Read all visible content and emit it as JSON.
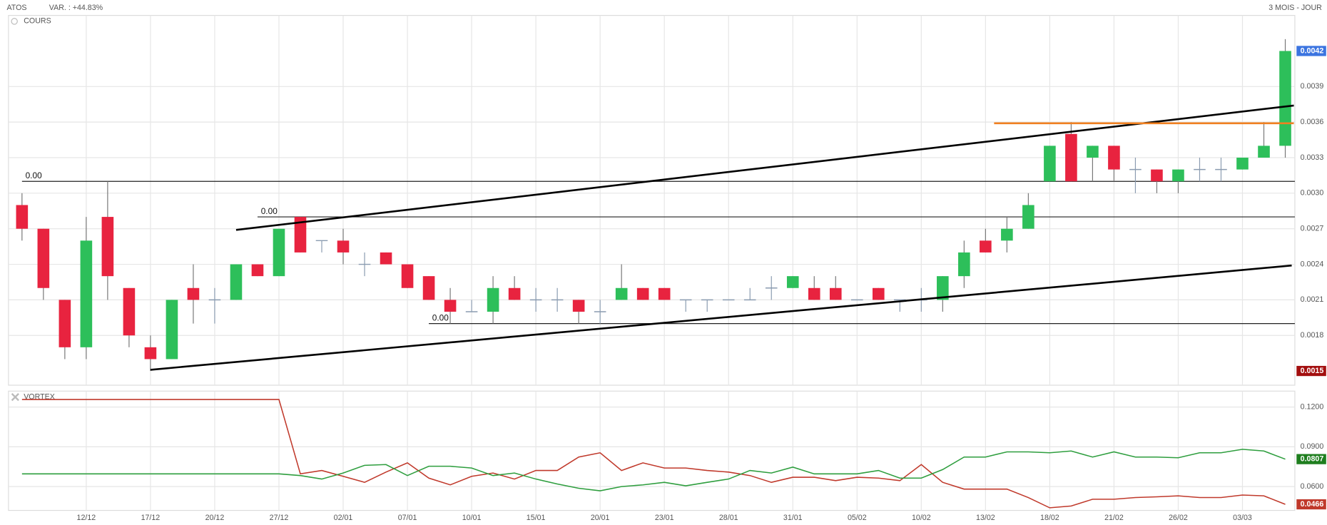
{
  "header": {
    "symbol": "ATOS",
    "variation": "VAR. : +44.83%",
    "period": "3 MOIS - JOUR"
  },
  "chart_data": [
    {
      "type": "candlestick",
      "title": "COURS",
      "up_color": "#2dbf5a",
      "down_color": "#e8233f",
      "doji_color": "#8a9bb0",
      "open": [
        0.0029,
        0.0027,
        0.0021,
        0.0017,
        0.0028,
        0.0022,
        0.0017,
        0.0016,
        0.0022,
        0.0021,
        0.0021,
        0.0024,
        0.0023,
        0.0028,
        0.0026,
        0.0026,
        0.0024,
        0.0025,
        0.0024,
        0.0023,
        0.0021,
        0.002,
        0.002,
        0.0022,
        0.0021,
        0.0021,
        0.0021,
        0.002,
        0.0021,
        0.0022,
        0.0022,
        0.0021,
        0.0021,
        0.0021,
        0.0021,
        0.0022,
        0.0022,
        0.0022,
        0.0022,
        0.0021,
        0.0022,
        0.0021,
        0.0021,
        0.0021,
        0.0023,
        0.0026,
        0.0026,
        0.0027,
        0.0031,
        0.0035,
        0.0033,
        0.0034,
        0.0032,
        0.0032,
        0.0031,
        0.0032,
        0.0032,
        0.0032,
        0.0033,
        0.0034
      ],
      "high": [
        0.003,
        0.0027,
        0.0021,
        0.0028,
        0.0031,
        0.0022,
        0.0018,
        0.0021,
        0.0024,
        0.0022,
        0.0024,
        0.0024,
        0.0027,
        0.0028,
        0.0026,
        0.0027,
        0.0025,
        0.0025,
        0.0024,
        0.0023,
        0.0022,
        0.0021,
        0.0023,
        0.0023,
        0.0022,
        0.0022,
        0.0021,
        0.0021,
        0.0024,
        0.0022,
        0.0022,
        0.0021,
        0.0021,
        0.0021,
        0.0022,
        0.0023,
        0.0023,
        0.0023,
        0.0023,
        0.0021,
        0.0022,
        0.0021,
        0.0022,
        0.0023,
        0.0026,
        0.0027,
        0.0028,
        0.003,
        0.0034,
        0.0036,
        0.0034,
        0.0034,
        0.0033,
        0.0032,
        0.0032,
        0.0033,
        0.0033,
        0.0033,
        0.0036,
        0.0043
      ],
      "low": [
        0.0026,
        0.0021,
        0.0016,
        0.0016,
        0.0021,
        0.0017,
        0.0015,
        0.0016,
        0.0019,
        0.0019,
        0.0021,
        0.0023,
        0.0023,
        0.0025,
        0.0025,
        0.0024,
        0.0023,
        0.0024,
        0.0022,
        0.0021,
        0.0019,
        0.002,
        0.0019,
        0.0021,
        0.002,
        0.002,
        0.0019,
        0.0019,
        0.0021,
        0.0021,
        0.0021,
        0.002,
        0.002,
        0.0021,
        0.0021,
        0.0021,
        0.0022,
        0.0021,
        0.0021,
        0.0021,
        0.0021,
        0.002,
        0.002,
        0.002,
        0.0022,
        0.0025,
        0.0025,
        0.0027,
        0.0031,
        0.0031,
        0.0031,
        0.0031,
        0.003,
        0.003,
        0.003,
        0.0031,
        0.0031,
        0.0032,
        0.0033,
        0.0033
      ],
      "close": [
        0.0027,
        0.0022,
        0.0017,
        0.0026,
        0.0023,
        0.0018,
        0.0016,
        0.0021,
        0.0021,
        0.0021,
        0.0024,
        0.0023,
        0.0027,
        0.0025,
        0.0026,
        0.0025,
        0.0024,
        0.0024,
        0.0022,
        0.0021,
        0.002,
        0.002,
        0.0022,
        0.0021,
        0.0021,
        0.0021,
        0.002,
        0.002,
        0.0022,
        0.0021,
        0.0021,
        0.0021,
        0.0021,
        0.0021,
        0.0021,
        0.0022,
        0.0023,
        0.0021,
        0.0021,
        0.0021,
        0.0021,
        0.0021,
        0.0021,
        0.0023,
        0.0025,
        0.0025,
        0.0027,
        0.0029,
        0.0034,
        0.0031,
        0.0034,
        0.0032,
        0.0032,
        0.0031,
        0.0032,
        0.0032,
        0.0032,
        0.0033,
        0.0034,
        0.0042
      ],
      "ylim": [
        0.00138,
        0.0045
      ],
      "yticks": [
        0.0018,
        0.0021,
        0.0024,
        0.0027,
        {
          "value": 0.003,
          "label": "0.0030"
        },
        0.0033,
        0.0036,
        0.0039
      ],
      "price_labels": [
        {
          "value": 0.0042,
          "color": "#3b74e0"
        },
        {
          "value": 0.0015,
          "color": "#a30f0f"
        }
      ],
      "levels": [
        {
          "value": 0.0031,
          "label": "0.00",
          "from": 0
        },
        {
          "value": 0.0028,
          "label": "0.00",
          "from": 11
        },
        {
          "value": 0.0019,
          "label": "0.00",
          "from": 19
        }
      ],
      "trendlines": [
        {
          "x": [
            6,
            59.3
          ],
          "y": [
            0.00151,
            0.00239
          ],
          "color": "#000000"
        },
        {
          "x": [
            10,
            59.4
          ],
          "y": [
            0.00269,
            0.00374
          ],
          "color": "#000000"
        },
        {
          "x": [
            45.4,
            59.4
          ],
          "y": [
            0.00359,
            0.00359
          ],
          "color": "#f08020"
        }
      ],
      "grid": true
    },
    {
      "type": "line",
      "title": "VORTEX",
      "categories": [
        null,
        null,
        null,
        "12/12",
        null,
        null,
        "17/12",
        null,
        null,
        "20/12",
        null,
        null,
        "27/12",
        null,
        null,
        "02/01",
        null,
        null,
        "07/01",
        null,
        null,
        "10/01",
        null,
        null,
        "15/01",
        null,
        null,
        "20/01",
        null,
        null,
        "23/01",
        null,
        null,
        "28/01",
        null,
        null,
        "31/01",
        null,
        null,
        "05/02",
        null,
        null,
        "10/02",
        null,
        null,
        "13/02",
        null,
        null,
        "18/02",
        null,
        null,
        "21/02",
        null,
        null,
        "26/02",
        null,
        null,
        "03/03",
        null,
        null
      ],
      "series": [
        {
          "color": "#c0392b",
          "values": [
            0.1257,
            0.1257,
            0.1257,
            0.1257,
            0.1257,
            0.1257,
            0.1257,
            0.1257,
            0.1257,
            0.1257,
            0.1257,
            0.1257,
            0.1257,
            0.0696,
            0.0721,
            0.0677,
            0.0632,
            0.0709,
            0.0779,
            0.0664,
            0.0613,
            0.0677,
            0.0702,
            0.0657,
            0.0721,
            0.0721,
            0.0823,
            0.0855,
            0.0721,
            0.0779,
            0.074,
            0.074,
            0.0721,
            0.0709,
            0.0683,
            0.0632,
            0.067,
            0.067,
            0.0645,
            0.067,
            0.0664,
            0.0645,
            0.0766,
            0.0632,
            0.0581,
            0.0581,
            0.0581,
            0.0517,
            0.044,
            0.0453,
            0.0504,
            0.0504,
            0.0517,
            0.0523,
            0.053,
            0.0517,
            0.0517,
            0.0536,
            0.053,
            0.0466
          ],
          "label_color": "#c0392b"
        },
        {
          "color": "#2e9e3e",
          "values": [
            0.0696,
            0.0696,
            0.0696,
            0.0696,
            0.0696,
            0.0696,
            0.0696,
            0.0696,
            0.0696,
            0.0696,
            0.0696,
            0.0696,
            0.0696,
            0.0683,
            0.0657,
            0.0702,
            0.076,
            0.0766,
            0.0683,
            0.0753,
            0.0753,
            0.074,
            0.0683,
            0.0702,
            0.0657,
            0.0619,
            0.0587,
            0.0568,
            0.06,
            0.0613,
            0.0632,
            0.0606,
            0.0632,
            0.0657,
            0.0721,
            0.0702,
            0.0747,
            0.0696,
            0.0696,
            0.0696,
            0.0721,
            0.0664,
            0.0664,
            0.0728,
            0.0823,
            0.0823,
            0.0862,
            0.0862,
            0.0855,
            0.0868,
            0.0823,
            0.0862,
            0.0823,
            0.0823,
            0.0817,
            0.0855,
            0.0855,
            0.0881,
            0.0868,
            0.0807
          ],
          "label_color": "#1e7e1e"
        }
      ],
      "ylim": [
        0.042,
        0.132
      ],
      "yticks": [
        {
          "value": 0.06,
          "label": "0.0600"
        },
        {
          "value": 0.09,
          "label": "0.0900"
        },
        {
          "value": 0.12,
          "label": "0.1200"
        }
      ],
      "grid": true
    }
  ]
}
